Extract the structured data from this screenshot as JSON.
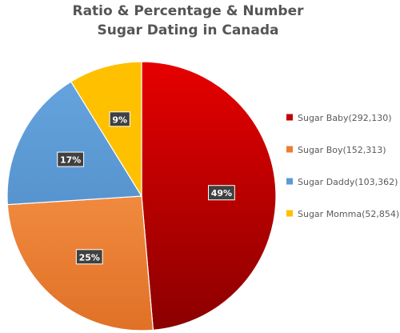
{
  "chart_data": {
    "type": "pie",
    "title_lines": [
      "Ratio & Percentage & Number",
      "Sugar Dating in Canada"
    ],
    "start_angle_deg": 0,
    "direction": "clockwise",
    "legend_position": "right",
    "slices": [
      {
        "label": "Sugar Baby(292,130)",
        "name": "Sugar Baby",
        "value": 292130,
        "percent_label": "49%",
        "color": "#C00000",
        "color_light": "#E60000",
        "color_dark": "#8B0000"
      },
      {
        "label": "Sugar Boy(152,313)",
        "name": "Sugar Boy",
        "value": 152313,
        "percent_label": "25%",
        "color": "#ED7D31",
        "color_light": "#F08A3E",
        "color_dark": "#E07127"
      },
      {
        "label": "Sugar Daddy(103,362)",
        "name": "Sugar Daddy",
        "value": 103362,
        "percent_label": "17%",
        "color": "#5B9BD5",
        "color_light": "#64A3DD",
        "color_dark": "#5794CF"
      },
      {
        "label": "Sugar Momma(52,854)",
        "name": "Sugar Momma",
        "value": 52854,
        "percent_label": "9%",
        "color": "#FFC000",
        "color_light": "#FFC000",
        "color_dark": "#FFC000"
      }
    ]
  }
}
